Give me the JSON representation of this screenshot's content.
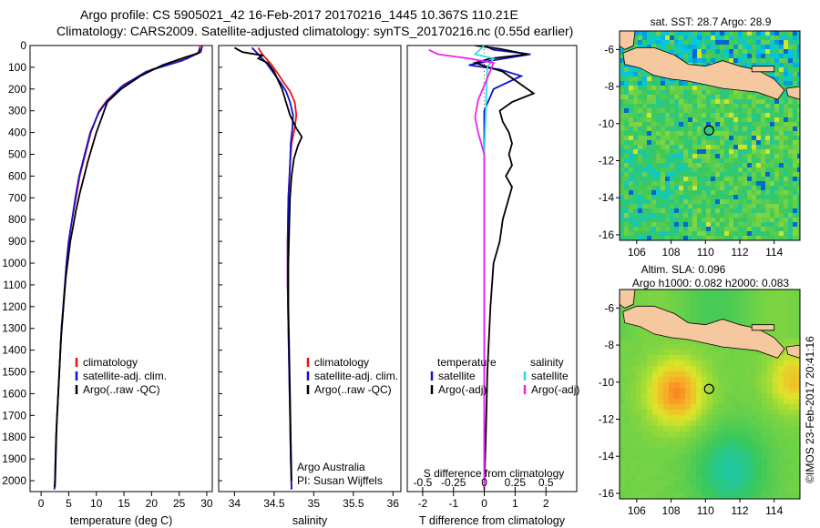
{
  "header": {
    "title_line1": "Argo profile: CS 5905021_42 16-Feb-2017 20170216_1445 10.367S 110.21E",
    "title_line2": "Climatology: CARS2009. Satellite-adjusted climatology: synTS_20170216.nc (0.55d earlier)"
  },
  "colors": {
    "climatology": "#ee1111",
    "satellite": "#1111cc",
    "argo": "#000000",
    "sat_salinity": "#33dddd",
    "argo_salinity_adj": "#ee22ee",
    "land": "#f5c8a0"
  },
  "chart_data": [
    {
      "type": "line",
      "id": "temperature",
      "xlabel": "temperature (deg C)",
      "xlim": [
        -2,
        31
      ],
      "ylim": [
        0,
        2050
      ],
      "xticks": [
        0,
        5,
        10,
        15,
        20,
        25,
        30
      ],
      "yticks": [
        0,
        100,
        200,
        300,
        400,
        500,
        600,
        700,
        800,
        900,
        1000,
        1100,
        1200,
        1300,
        1400,
        1500,
        1600,
        1700,
        1800,
        1900,
        2000
      ],
      "legend": [
        "climatology",
        "satellite-adj. clim.",
        "Argo(..raw -QC)"
      ],
      "series": [
        {
          "name": "climatology",
          "color": "#ee1111",
          "points": [
            [
              28.8,
              0
            ],
            [
              28.6,
              30
            ],
            [
              26.5,
              60
            ],
            [
              20,
              110
            ],
            [
              15,
              180
            ],
            [
              12,
              250
            ],
            [
              10.5,
              300
            ],
            [
              9,
              400
            ],
            [
              8,
              500
            ],
            [
              7,
              600
            ],
            [
              6.3,
              700
            ],
            [
              5.6,
              800
            ],
            [
              5,
              900
            ],
            [
              4.6,
              1000
            ],
            [
              4.3,
              1100
            ],
            [
              4.0,
              1200
            ],
            [
              3.7,
              1300
            ],
            [
              3.5,
              1400
            ],
            [
              3.3,
              1500
            ],
            [
              3.1,
              1600
            ],
            [
              2.9,
              1700
            ],
            [
              2.7,
              1800
            ],
            [
              2.6,
              1900
            ],
            [
              2.5,
              2000
            ],
            [
              2.4,
              2040
            ]
          ]
        },
        {
          "name": "satellite-adj. clim.",
          "color": "#1111cc",
          "points": [
            [
              29.2,
              0
            ],
            [
              28.9,
              30
            ],
            [
              25.5,
              70
            ],
            [
              19,
              120
            ],
            [
              14.5,
              190
            ],
            [
              11.8,
              260
            ],
            [
              10.4,
              310
            ],
            [
              8.9,
              400
            ],
            [
              7.9,
              500
            ],
            [
              6.9,
              600
            ],
            [
              6.2,
              700
            ],
            [
              5.6,
              800
            ],
            [
              5,
              900
            ],
            [
              4.6,
              1000
            ],
            [
              4.3,
              1100
            ],
            [
              4.0,
              1200
            ],
            [
              3.7,
              1300
            ],
            [
              3.5,
              1400
            ],
            [
              3.3,
              1500
            ],
            [
              3.1,
              1600
            ],
            [
              2.9,
              1700
            ],
            [
              2.7,
              1800
            ],
            [
              2.6,
              1900
            ],
            [
              2.5,
              2000
            ],
            [
              2.4,
              2040
            ]
          ]
        },
        {
          "name": "Argo(..raw -QC)",
          "color": "#000000",
          "points": [
            [
              28.7,
              15
            ],
            [
              28.5,
              35
            ],
            [
              26,
              55
            ],
            [
              22,
              90
            ],
            [
              18,
              140
            ],
            [
              14.5,
              200
            ],
            [
              12,
              260
            ],
            [
              11,
              330
            ],
            [
              10,
              400
            ],
            [
              9.3,
              460
            ],
            [
              8.5,
              530
            ],
            [
              7.8,
              600
            ],
            [
              7,
              680
            ],
            [
              6.3,
              760
            ],
            [
              5.8,
              830
            ],
            [
              5.3,
              900
            ],
            [
              4.9,
              980
            ],
            [
              4.5,
              1060
            ],
            [
              4.2,
              1150
            ],
            [
              3.9,
              1250
            ],
            [
              3.6,
              1350
            ],
            [
              3.4,
              1450
            ],
            [
              3.2,
              1550
            ],
            [
              3.0,
              1650
            ],
            [
              2.8,
              1750
            ],
            [
              2.7,
              1850
            ],
            [
              2.6,
              1950
            ],
            [
              2.5,
              2030
            ]
          ]
        }
      ]
    },
    {
      "type": "line",
      "id": "salinity",
      "xlabel": "salinity",
      "xlim": [
        33.8,
        36.1
      ],
      "ylim": [
        0,
        2050
      ],
      "xticks": [
        34,
        34.5,
        35,
        35.5,
        36
      ],
      "legend": [
        "climatology",
        "satellite-adj. clim.",
        "Argo(..raw -QC)"
      ],
      "annotation": [
        "Argo Australia",
        "PI: Susan Wijffels"
      ],
      "series": [
        {
          "name": "climatology",
          "color": "#ee1111",
          "points": [
            [
              34.3,
              10
            ],
            [
              34.35,
              40
            ],
            [
              34.45,
              80
            ],
            [
              34.55,
              130
            ],
            [
              34.62,
              170
            ],
            [
              34.7,
              210
            ],
            [
              34.76,
              260
            ],
            [
              34.78,
              320
            ],
            [
              34.76,
              380
            ],
            [
              34.72,
              450
            ],
            [
              34.7,
              550
            ],
            [
              34.68,
              700
            ],
            [
              34.67,
              900
            ],
            [
              34.67,
              1100
            ],
            [
              34.68,
              1300
            ],
            [
              34.69,
              1500
            ],
            [
              34.7,
              1700
            ],
            [
              34.71,
              1900
            ],
            [
              34.72,
              2040
            ]
          ]
        },
        {
          "name": "satellite-adj. clim.",
          "color": "#1111cc",
          "points": [
            [
              34.22,
              10
            ],
            [
              34.3,
              40
            ],
            [
              34.4,
              80
            ],
            [
              34.5,
              130
            ],
            [
              34.58,
              170
            ],
            [
              34.65,
              210
            ],
            [
              34.7,
              260
            ],
            [
              34.74,
              320
            ],
            [
              34.73,
              380
            ],
            [
              34.71,
              450
            ],
            [
              34.7,
              550
            ],
            [
              34.68,
              700
            ],
            [
              34.67,
              900
            ],
            [
              34.67,
              1100
            ],
            [
              34.68,
              1300
            ],
            [
              34.69,
              1500
            ],
            [
              34.7,
              1700
            ],
            [
              34.71,
              1900
            ],
            [
              34.72,
              2040
            ]
          ]
        },
        {
          "name": "Argo(..raw -QC)",
          "color": "#000000",
          "points": [
            [
              34.0,
              10
            ],
            [
              34.1,
              30
            ],
            [
              34.35,
              45
            ],
            [
              34.3,
              60
            ],
            [
              34.42,
              80
            ],
            [
              34.5,
              120
            ],
            [
              34.55,
              160
            ],
            [
              34.6,
              200
            ],
            [
              34.65,
              260
            ],
            [
              34.7,
              320
            ],
            [
              34.78,
              380
            ],
            [
              34.85,
              420
            ],
            [
              34.8,
              460
            ],
            [
              34.75,
              520
            ],
            [
              34.72,
              600
            ],
            [
              34.7,
              700
            ],
            [
              34.69,
              850
            ],
            [
              34.68,
              1000
            ],
            [
              34.68,
              1200
            ],
            [
              34.69,
              1400
            ],
            [
              34.7,
              1600
            ],
            [
              34.71,
              1800
            ],
            [
              34.72,
              2000
            ]
          ]
        }
      ]
    },
    {
      "type": "line",
      "id": "difference",
      "xlabel": "T difference from climatology",
      "xlabel_top": "S difference from climatology",
      "xlim": [
        -2.5,
        3
      ],
      "ylim": [
        0,
        2050
      ],
      "xticks_T": [
        -2,
        -1,
        0,
        1,
        2
      ],
      "xticks_S": [
        -0.5,
        -0.25,
        0,
        0.25,
        0.5
      ],
      "xticks_S_labels": [
        "-0.5",
        "-0.25",
        "0",
        "0.25",
        "0.5"
      ],
      "legend_left_title": "temperature",
      "legend_right_title": "salinity",
      "legend": [
        "satellite",
        "Argo(-adj)",
        "satellite",
        "Argo(-adj)"
      ],
      "series": [
        {
          "name": "satellite",
          "color": "#1111cc",
          "points": [
            [
              0,
              0
            ],
            [
              0.3,
              20
            ],
            [
              1.5,
              40
            ],
            [
              0.2,
              70
            ],
            [
              -0.5,
              90
            ],
            [
              0.5,
              110
            ],
            [
              1.2,
              140
            ],
            [
              0.3,
              200
            ],
            [
              0,
              300
            ],
            [
              0,
              600
            ],
            [
              0,
              1200
            ],
            [
              0,
              2040
            ]
          ]
        },
        {
          "name": "Argo(-adj)",
          "color": "#000000",
          "points": [
            [
              -0.3,
              0
            ],
            [
              0.5,
              15
            ],
            [
              1.4,
              40
            ],
            [
              0.2,
              60
            ],
            [
              -0.3,
              80
            ],
            [
              0.6,
              120
            ],
            [
              1.0,
              160
            ],
            [
              1.6,
              220
            ],
            [
              0.9,
              260
            ],
            [
              0.5,
              300
            ],
            [
              0.6,
              350
            ],
            [
              0.8,
              400
            ],
            [
              0.9,
              450
            ],
            [
              0.8,
              500
            ],
            [
              0.9,
              550
            ],
            [
              0.7,
              600
            ],
            [
              0.9,
              650
            ],
            [
              0.8,
              700
            ],
            [
              0.6,
              800
            ],
            [
              0.5,
              900
            ],
            [
              0.3,
              1000
            ],
            [
              0.2,
              1200
            ],
            [
              0.1,
              1500
            ],
            [
              0.05,
              1800
            ],
            [
              0,
              2040
            ]
          ]
        },
        {
          "name": "satellite",
          "color": "#33dddd",
          "points": [
            [
              0,
              0
            ],
            [
              -0.3,
              40
            ],
            [
              0.3,
              60
            ],
            [
              0.1,
              100
            ],
            [
              0.05,
              300
            ],
            [
              0,
              500
            ],
            [
              0,
              1000
            ],
            [
              0,
              1500
            ],
            [
              0,
              2040
            ]
          ]
        },
        {
          "name": "Argo(-adj)",
          "color": "#ee22ee",
          "points": [
            [
              -1.8,
              20
            ],
            [
              -1.5,
              40
            ],
            [
              -0.5,
              60
            ],
            [
              0.3,
              80
            ],
            [
              0.1,
              150
            ],
            [
              -0.2,
              250
            ],
            [
              -0.3,
              330
            ],
            [
              -0.2,
              400
            ],
            [
              0,
              500
            ],
            [
              0,
              800
            ],
            [
              0,
              1200
            ],
            [
              0,
              2040
            ]
          ]
        }
      ]
    },
    {
      "type": "heatmap",
      "id": "sst-map",
      "title": "sat. SST: 28.7 Argo: 28.9",
      "xlim": [
        105,
        115.5
      ],
      "ylim": [
        -16.3,
        -5
      ],
      "xticks": [
        106,
        108,
        110,
        112,
        114
      ],
      "yticks": [
        -6,
        -8,
        -10,
        -12,
        -14,
        -16
      ],
      "marker": [
        110.21,
        -10.367
      ]
    },
    {
      "type": "heatmap",
      "id": "sla-map",
      "title": "Altim. SLA: 0.096",
      "subtitle": "Argo h1000: 0.082 h2000: 0.083",
      "xlim": [
        105,
        115.5
      ],
      "ylim": [
        -16.3,
        -5
      ],
      "xticks": [
        106,
        108,
        110,
        112,
        114
      ],
      "yticks": [
        -6,
        -8,
        -10,
        -12,
        -14,
        -16
      ],
      "marker": [
        110.21,
        -10.367
      ]
    }
  ],
  "footer": {
    "credit": "©IMOS 23-Feb-2017 20:41:16"
  }
}
